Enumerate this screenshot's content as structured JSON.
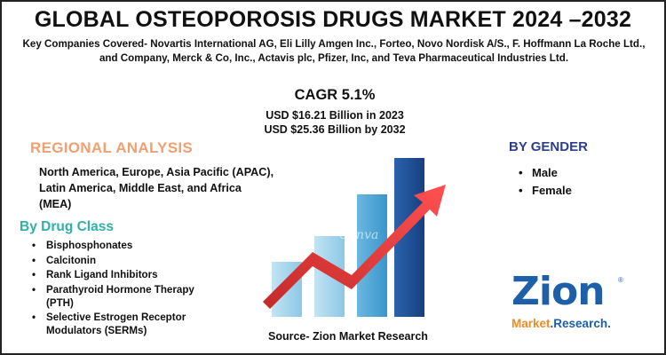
{
  "header": {
    "title": "GLOBAL OSTEOPOROSIS DRUGS MARKET 2024 –2032",
    "companies": "Key Companies Covered- Novartis International AG, Eli Lilly Amgen Inc., Forteo, Novo Nordisk A/S., F. Hoffmann La Roche Ltd., and Company, Merck & Co, Inc., Actavis plc, Pfizer, Inc, and Teva Pharmaceutical Industries Ltd."
  },
  "stats": {
    "cagr": "CAGR 5.1%",
    "value_2023": "USD $16.21 Billion in 2023",
    "value_2032": "USD $25.36 Billion by 2032"
  },
  "regional": {
    "heading": "REGIONAL ANALYSIS",
    "text": "North America, Europe, Asia Pacific (APAC), Latin America, Middle East, and Africa (MEA)"
  },
  "drug_class": {
    "heading": "By Drug Class",
    "items": [
      "Bisphosphonates",
      "Calcitonin",
      "Rank Ligand Inhibitors",
      "Parathyroid Hormone Therapy (PTH)",
      "Selective Estrogen Receptor Modulators (SERMs)"
    ]
  },
  "gender": {
    "heading": "BY GENDER",
    "items": [
      "Male",
      "Female"
    ]
  },
  "source": "Source- Zion Market Research",
  "logo": {
    "name": "Zion",
    "sub_market": "Market",
    "sub_rest": ".Research."
  },
  "colors": {
    "regional_heading": "#f0a070",
    "drug_heading": "#2fb0a8",
    "gender_heading": "#2c3e8c",
    "bar_light": "#9fd3ea",
    "bar_mid": "#4aa6d6",
    "bar_dark": "#1d4f96",
    "arrow": "#e23a3a",
    "logo_blue": "#1d5fa8",
    "logo_orange": "#f08a24"
  },
  "icons": {
    "bullet": "•",
    "chart": "growth-bars-with-arrow-icon",
    "logo": "zion-market-research-logo"
  },
  "watermark": "Canva"
}
